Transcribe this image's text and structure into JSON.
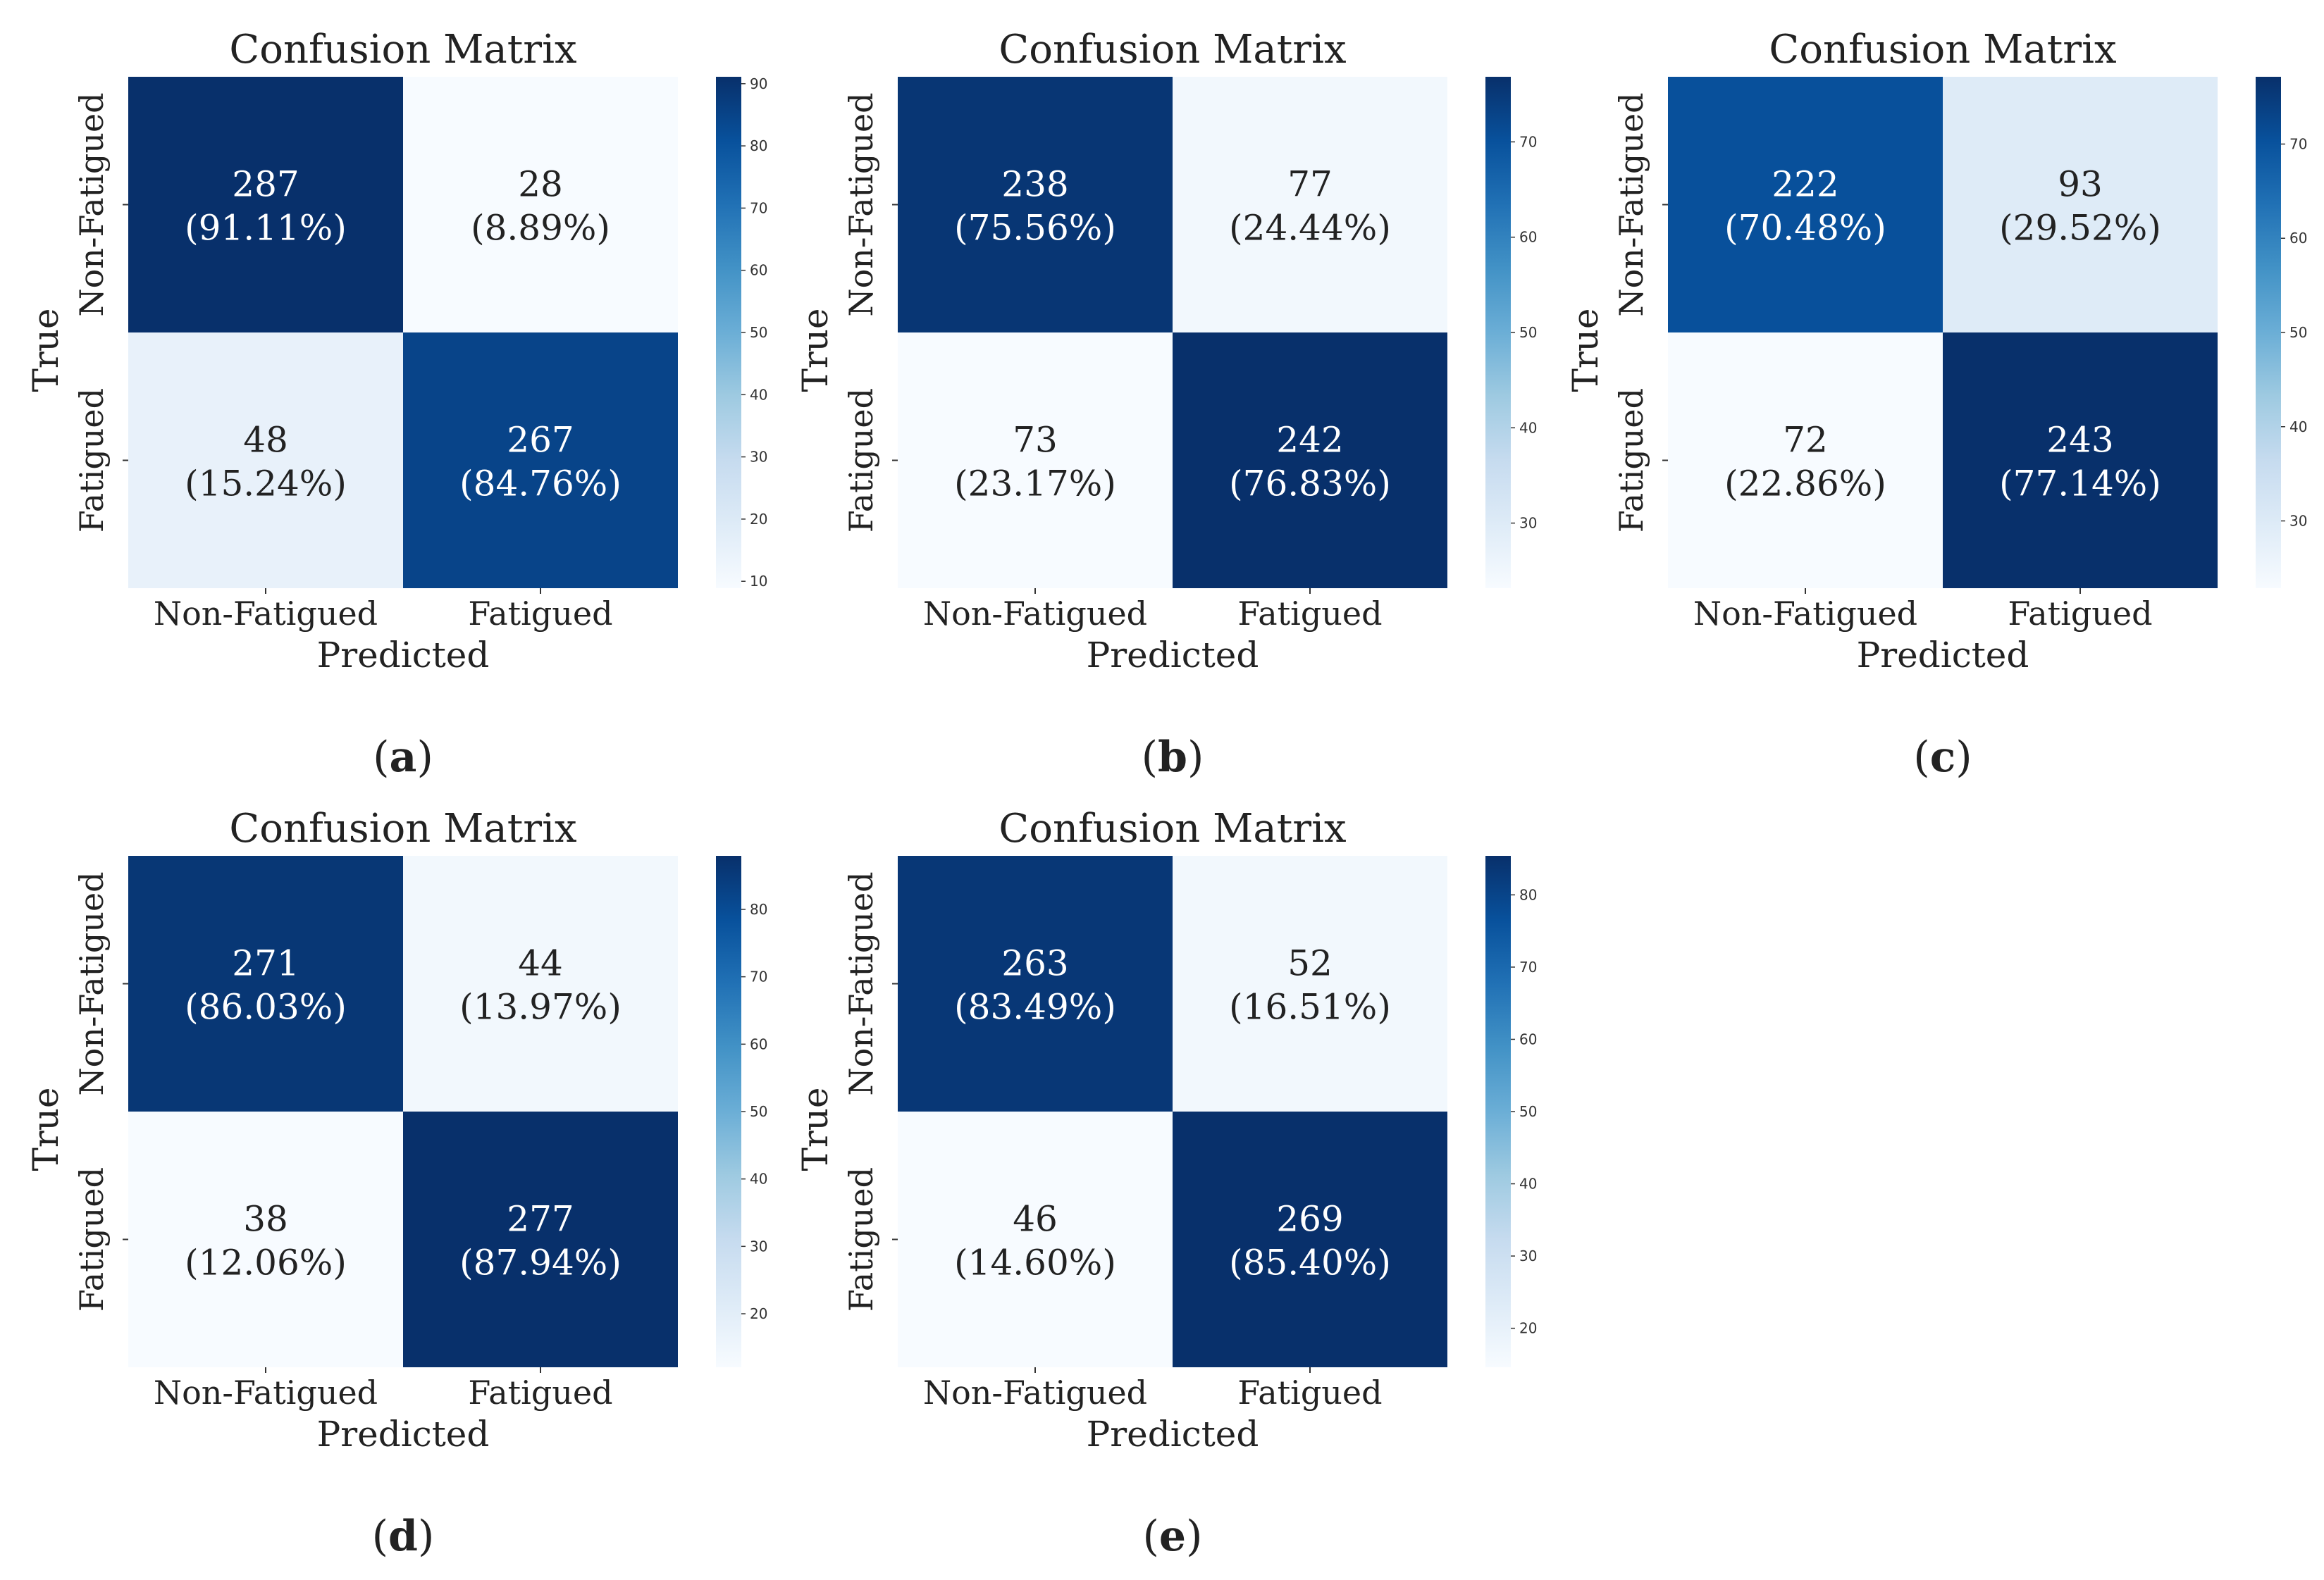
{
  "chart_data": [
    {
      "type": "heatmap",
      "panel": "a",
      "title": "Confusion Matrix",
      "xlabel": "Predicted",
      "ylabel": "True",
      "x_categories": [
        "Non-Fatigued",
        "Fatigued"
      ],
      "y_categories": [
        "Non-Fatigued",
        "Fatigued"
      ],
      "counts": [
        [
          287,
          28
        ],
        [
          48,
          267
        ]
      ],
      "percent_labels": [
        [
          "(91.11%)",
          "(8.89%)"
        ],
        [
          "(15.24%)",
          "(84.76%)"
        ]
      ],
      "percent_values": [
        [
          91.11,
          8.89
        ],
        [
          15.24,
          84.76
        ]
      ],
      "colorbar": {
        "range": [
          8.89,
          91.11
        ],
        "ticks": [
          10,
          20,
          30,
          40,
          50,
          60,
          70,
          80,
          90
        ]
      }
    },
    {
      "type": "heatmap",
      "panel": "b",
      "title": "Confusion Matrix",
      "xlabel": "Predicted",
      "ylabel": "True",
      "x_categories": [
        "Non-Fatigued",
        "Fatigued"
      ],
      "y_categories": [
        "Non-Fatigued",
        "Fatigued"
      ],
      "counts": [
        [
          238,
          77
        ],
        [
          73,
          242
        ]
      ],
      "percent_labels": [
        [
          "(75.56%)",
          "(24.44%)"
        ],
        [
          "(23.17%)",
          "(76.83%)"
        ]
      ],
      "percent_values": [
        [
          75.56,
          24.44
        ],
        [
          23.17,
          76.83
        ]
      ],
      "colorbar": {
        "range": [
          23.17,
          76.83
        ],
        "ticks": [
          30,
          40,
          50,
          60,
          70
        ]
      }
    },
    {
      "type": "heatmap",
      "panel": "c",
      "title": "Confusion Matrix",
      "xlabel": "Predicted",
      "ylabel": "True",
      "x_categories": [
        "Non-Fatigued",
        "Fatigued"
      ],
      "y_categories": [
        "Non-Fatigued",
        "Fatigued"
      ],
      "counts": [
        [
          222,
          93
        ],
        [
          72,
          243
        ]
      ],
      "percent_labels": [
        [
          "(70.48%)",
          "(29.52%)"
        ],
        [
          "(22.86%)",
          "(77.14%)"
        ]
      ],
      "percent_values": [
        [
          70.48,
          29.52
        ],
        [
          22.86,
          77.14
        ]
      ],
      "colorbar": {
        "range": [
          22.86,
          77.14
        ],
        "ticks": [
          30,
          40,
          50,
          60,
          70
        ]
      }
    },
    {
      "type": "heatmap",
      "panel": "d",
      "title": "Confusion Matrix",
      "xlabel": "Predicted",
      "ylabel": "True",
      "x_categories": [
        "Non-Fatigued",
        "Fatigued"
      ],
      "y_categories": [
        "Non-Fatigued",
        "Fatigued"
      ],
      "counts": [
        [
          271,
          44
        ],
        [
          38,
          277
        ]
      ],
      "percent_labels": [
        [
          "(86.03%)",
          "(13.97%)"
        ],
        [
          "(12.06%)",
          "(87.94%)"
        ]
      ],
      "percent_values": [
        [
          86.03,
          13.97
        ],
        [
          12.06,
          87.94
        ]
      ],
      "colorbar": {
        "range": [
          12.06,
          87.94
        ],
        "ticks": [
          20,
          30,
          40,
          50,
          60,
          70,
          80
        ]
      }
    },
    {
      "type": "heatmap",
      "panel": "e",
      "title": "Confusion Matrix",
      "xlabel": "Predicted",
      "ylabel": "True",
      "x_categories": [
        "Non-Fatigued",
        "Fatigued"
      ],
      "y_categories": [
        "Non-Fatigued",
        "Fatigued"
      ],
      "counts": [
        [
          263,
          52
        ],
        [
          46,
          269
        ]
      ],
      "percent_labels": [
        [
          "(83.49%)",
          "(16.51%)"
        ],
        [
          "(14.60%)",
          "(85.40%)"
        ]
      ],
      "percent_values": [
        [
          83.49,
          16.51
        ],
        [
          14.6,
          85.4
        ]
      ],
      "colorbar": {
        "range": [
          14.6,
          85.4
        ],
        "ticks": [
          20,
          30,
          40,
          50,
          60,
          70,
          80
        ]
      }
    }
  ],
  "colormap": {
    "name": "Blues",
    "stops": [
      "#f7fbff",
      "#deebf7",
      "#c6dbef",
      "#9ecae1",
      "#6baed6",
      "#4292c6",
      "#2171b5",
      "#08519c",
      "#08306b"
    ]
  }
}
